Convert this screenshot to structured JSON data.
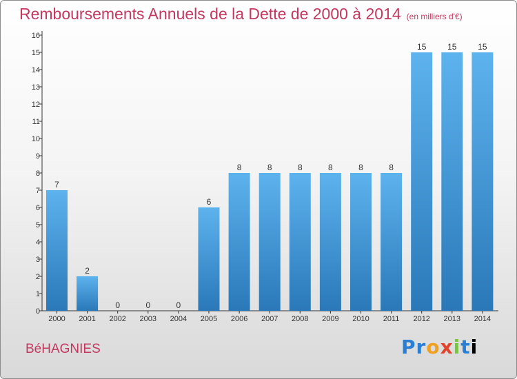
{
  "title": "Remboursements Annuels de la Dette de 2000 à 2014",
  "unit": "(en milliers d'€)",
  "commune": "BéHAGNIES",
  "brand": "Proxiti",
  "colors": {
    "title": "#c4385f",
    "bar_light": "#5db3ee",
    "bar_dark": "#2a78b8",
    "axis": "#333333"
  },
  "chart_data": {
    "type": "bar",
    "title": "Remboursements Annuels de la Dette de 2000 à 2014",
    "categories": [
      "2000",
      "2001",
      "2002",
      "2003",
      "2004",
      "2005",
      "2006",
      "2007",
      "2008",
      "2009",
      "2010",
      "2011",
      "2012",
      "2013",
      "2014"
    ],
    "values": [
      7,
      2,
      0,
      0,
      0,
      6,
      8,
      8,
      8,
      8,
      8,
      8,
      15,
      15,
      15
    ],
    "ylim": [
      0,
      16
    ],
    "yticks": [
      0,
      1,
      2,
      3,
      4,
      5,
      6,
      7,
      8,
      9,
      10,
      11,
      12,
      13,
      14,
      15,
      16
    ],
    "xlabel": "",
    "ylabel": "",
    "grid": false,
    "data_labels": true
  }
}
